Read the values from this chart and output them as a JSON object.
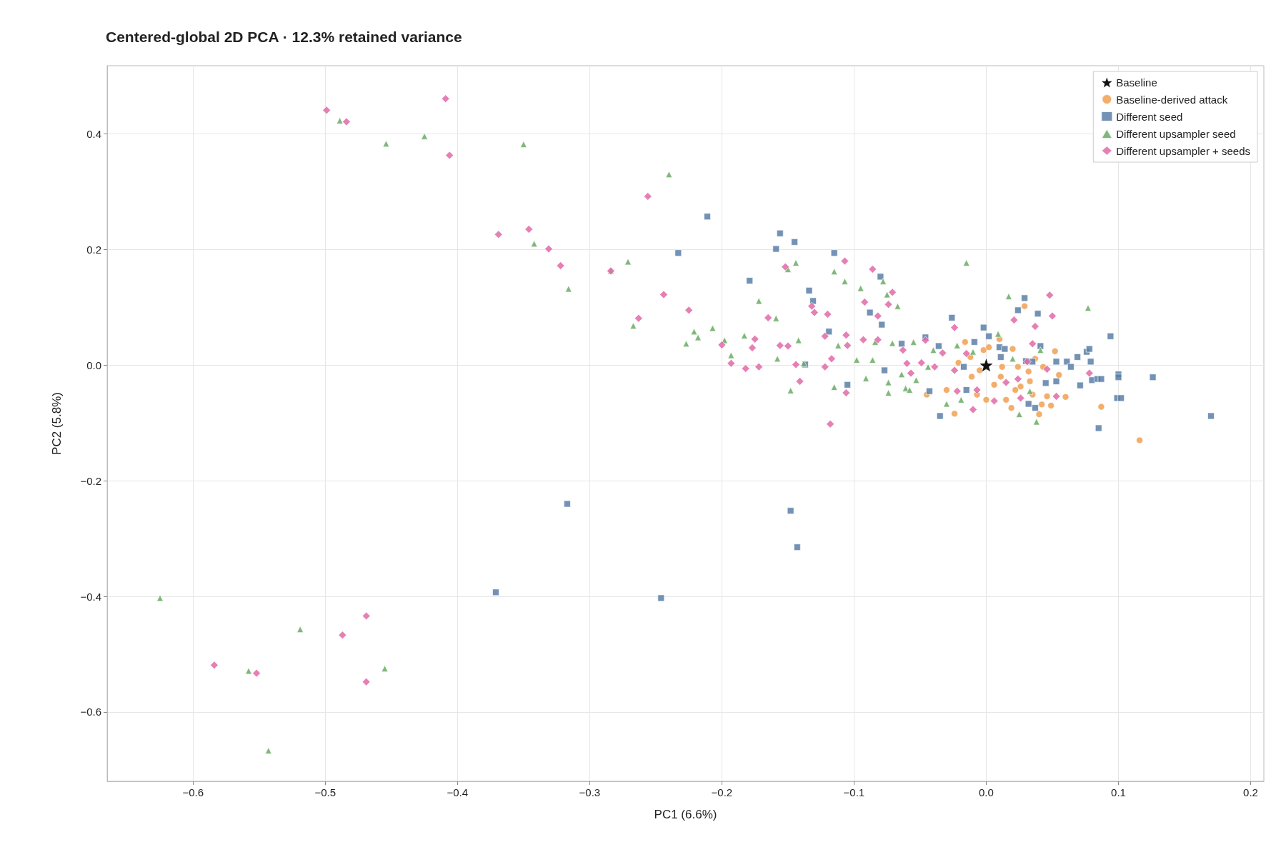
{
  "chart_data": {
    "type": "scatter",
    "title": "Centered-global 2D PCA · 12.3% retained variance",
    "xlabel": "PC1 (6.6%)",
    "ylabel": "PC2 (5.8%)",
    "xlim": [
      -0.665,
      0.21
    ],
    "ylim": [
      -0.72,
      0.518
    ],
    "xticks": [
      {
        "value": -0.6,
        "label": "−0.6"
      },
      {
        "value": -0.5,
        "label": "−0.5"
      },
      {
        "value": -0.4,
        "label": "−0.4"
      },
      {
        "value": -0.3,
        "label": "−0.3"
      },
      {
        "value": -0.2,
        "label": "−0.2"
      },
      {
        "value": -0.1,
        "label": "−0.1"
      },
      {
        "value": 0,
        "label": "0.0"
      },
      {
        "value": 0.1,
        "label": "0.1"
      },
      {
        "value": 0.2,
        "label": "0.2"
      }
    ],
    "yticks": [
      {
        "value": -0.6,
        "label": "−0.6"
      },
      {
        "value": -0.4,
        "label": "−0.4"
      },
      {
        "value": -0.2,
        "label": "−0.2"
      },
      {
        "value": 0,
        "label": "0.0"
      },
      {
        "value": 0.2,
        "label": "0.2"
      },
      {
        "value": 0.4,
        "label": "0.4"
      }
    ],
    "grid": true,
    "legend": "top right",
    "series": [
      {
        "name": "Baseline-derived attack",
        "color": "#f0a050",
        "marker": "circle",
        "x": [
          -0.045,
          -0.03,
          -0.024,
          -0.021,
          -0.016,
          -0.011,
          -0.007,
          -0.002,
          0,
          0.002,
          0.006,
          0.01,
          0.011,
          0.015,
          0.019,
          0.02,
          0.024,
          0.026,
          0.029,
          0.032,
          0.035,
          0.037,
          0.04,
          0.042,
          0.046,
          0.049,
          0.052,
          0.055,
          0.06,
          0.087,
          0.116,
          0.022,
          0.012,
          -0.005,
          -0.012,
          0.006,
          0.033,
          0.043
        ],
        "values": [
          -0.051,
          -0.043,
          -0.084,
          0.004,
          0.04,
          -0.02,
          -0.051,
          0.026,
          -0.06,
          0.031,
          null,
          0.045,
          -0.02,
          -0.06,
          -0.074,
          0.028,
          -0.003,
          -0.037,
          0.102,
          -0.011,
          -0.051,
          0.011,
          -0.085,
          -0.068,
          -0.054,
          -0.07,
          0.024,
          -0.017,
          -0.055,
          -0.072,
          -0.13,
          -0.043,
          -0.003,
          -0.009,
          0.014,
          -0.034,
          -0.028,
          -0.003
        ]
      },
      {
        "name": "Different seed",
        "color": "#5b7fa8",
        "marker": "square",
        "x": [
          -0.211,
          -0.156,
          -0.145,
          -0.233,
          -0.115,
          -0.159,
          -0.179,
          -0.134,
          -0.131,
          -0.119,
          -0.137,
          -0.08,
          -0.088,
          -0.079,
          -0.077,
          -0.105,
          -0.064,
          -0.046,
          -0.043,
          -0.036,
          -0.035,
          -0.026,
          -0.017,
          -0.015,
          -0.009,
          -0.002,
          0.002,
          0.01,
          0.014,
          0.011,
          0.024,
          0.029,
          0.03,
          0.032,
          0.035,
          0.037,
          0.039,
          0.041,
          0.045,
          0.053,
          0.053,
          0.061,
          0.064,
          0.069,
          0.071,
          0.076,
          0.078,
          0.079,
          0.08,
          0.084,
          0.087,
          0.085,
          0.094,
          0.1,
          0.1,
          0.099,
          0.102,
          0.126,
          0.17,
          -0.317,
          -0.148,
          -0.143,
          -0.371,
          -0.246
        ],
        "values": [
          0.257,
          0.228,
          0.213,
          0.194,
          0.194,
          0.201,
          0.146,
          0.129,
          0.111,
          0.058,
          0.001,
          0.153,
          0.091,
          0.07,
          -0.009,
          -0.034,
          0.037,
          0.048,
          -0.045,
          0.033,
          -0.088,
          0.082,
          -0.003,
          -0.043,
          0.04,
          0.065,
          0.05,
          0.031,
          0.028,
          0.014,
          0.095,
          0.116,
          0.007,
          -0.067,
          0.006,
          -0.074,
          0.089,
          0.033,
          -0.031,
          0.006,
          -0.028,
          0.006,
          -0.003,
          0.014,
          -0.035,
          0.023,
          0.028,
          0.006,
          -0.026,
          -0.024,
          -0.024,
          -0.109,
          0.05,
          -0.016,
          -0.021,
          -0.057,
          -0.057,
          -0.021,
          -0.088,
          -0.24,
          -0.252,
          -0.315,
          -0.393,
          -0.403
        ]
      },
      {
        "name": "Different upsampler seed",
        "color": "#6aaa64",
        "marker": "triangle",
        "x": [
          -0.489,
          -0.454,
          -0.425,
          -0.35,
          -0.342,
          -0.316,
          -0.284,
          -0.24,
          -0.271,
          -0.267,
          -0.227,
          -0.221,
          -0.218,
          -0.207,
          -0.198,
          -0.193,
          -0.183,
          -0.172,
          -0.159,
          -0.158,
          -0.15,
          -0.148,
          -0.144,
          -0.142,
          -0.138,
          -0.115,
          -0.115,
          -0.112,
          -0.107,
          -0.098,
          -0.095,
          -0.091,
          -0.086,
          -0.084,
          -0.078,
          -0.075,
          -0.074,
          -0.074,
          -0.071,
          -0.067,
          -0.064,
          -0.061,
          -0.058,
          -0.055,
          -0.053,
          -0.044,
          -0.04,
          -0.03,
          -0.022,
          -0.019,
          -0.015,
          -0.01,
          0,
          0.009,
          0.017,
          0.02,
          0.025,
          0.033,
          0.038,
          0.041,
          0.077,
          -0.625,
          -0.558,
          -0.543,
          -0.519,
          -0.455
        ],
        "values": [
          0.423,
          0.383,
          0.396,
          0.382,
          0.21,
          0.132,
          0.163,
          0.33,
          0.179,
          0.068,
          0.037,
          0.058,
          0.048,
          0.064,
          0.043,
          0.017,
          0.051,
          0.111,
          0.081,
          0.011,
          0.166,
          -0.044,
          0.177,
          0.043,
          0.003,
          0.162,
          -0.038,
          0.034,
          0.145,
          0.009,
          0.133,
          -0.023,
          0.009,
          0.04,
          0.145,
          0.122,
          -0.048,
          -0.03,
          0.038,
          0.102,
          -0.016,
          -0.04,
          -0.043,
          0.04,
          -0.026,
          -0.003,
          0.026,
          -0.067,
          0.034,
          -0.06,
          0.177,
          0.023,
          -0.003,
          0.054,
          0.119,
          0.011,
          -0.085,
          -0.045,
          -0.098,
          0.026,
          0.099,
          -0.403,
          -0.529,
          -0.667,
          -0.457,
          -0.525
        ]
      },
      {
        "name": "Different upsampler + seeds",
        "color": "#e06aa8",
        "marker": "diamond",
        "x": [
          -0.499,
          -0.484,
          -0.409,
          -0.406,
          -0.369,
          -0.346,
          -0.331,
          -0.322,
          -0.284,
          -0.256,
          -0.263,
          -0.244,
          -0.225,
          -0.2,
          -0.193,
          -0.182,
          -0.177,
          -0.175,
          -0.172,
          -0.165,
          -0.156,
          -0.152,
          -0.15,
          -0.144,
          -0.141,
          -0.132,
          -0.13,
          -0.12,
          -0.122,
          -0.122,
          -0.117,
          -0.118,
          -0.107,
          -0.106,
          -0.105,
          -0.106,
          -0.093,
          -0.092,
          -0.086,
          -0.082,
          -0.082,
          -0.074,
          -0.071,
          -0.063,
          -0.06,
          -0.057,
          -0.049,
          -0.046,
          -0.039,
          -0.033,
          -0.024,
          -0.024,
          -0.022,
          -0.015,
          -0.01,
          -0.007,
          0.006,
          0.015,
          0.021,
          0.024,
          0.026,
          0.031,
          0.035,
          0.037,
          0.046,
          0.048,
          0.05,
          0.053,
          0.078,
          -0.584,
          -0.552,
          -0.487,
          -0.469,
          -0.469
        ],
        "values": [
          0.441,
          0.421,
          0.461,
          0.363,
          0.226,
          0.235,
          0.201,
          0.172,
          0.163,
          0.292,
          0.081,
          0.122,
          0.095,
          0.035,
          0.003,
          -0.006,
          0.03,
          0.045,
          -0.003,
          0.082,
          0.034,
          0.17,
          0.033,
          0.001,
          -0.028,
          0.102,
          0.091,
          0.088,
          0.05,
          -0.003,
          0.011,
          -0.102,
          0.18,
          0.052,
          0.034,
          -0.048,
          0.044,
          0.109,
          0.166,
          0.044,
          0.085,
          0.105,
          0.126,
          0.026,
          0.003,
          -0.014,
          0.004,
          0.043,
          -0.003,
          0.021,
          -0.009,
          0.065,
          -0.045,
          0.02,
          -0.077,
          -0.043,
          -0.062,
          -0.03,
          0.078,
          -0.024,
          -0.057,
          0.006,
          0.037,
          0.067,
          -0.007,
          0.121,
          0.085,
          -0.054,
          -0.014,
          -0.519,
          -0.533,
          -0.467,
          -0.434,
          -0.548
        ]
      },
      {
        "name": "Baseline",
        "color": "#111111",
        "marker": "star",
        "x": [
          0
        ],
        "values": [
          0
        ]
      }
    ]
  }
}
